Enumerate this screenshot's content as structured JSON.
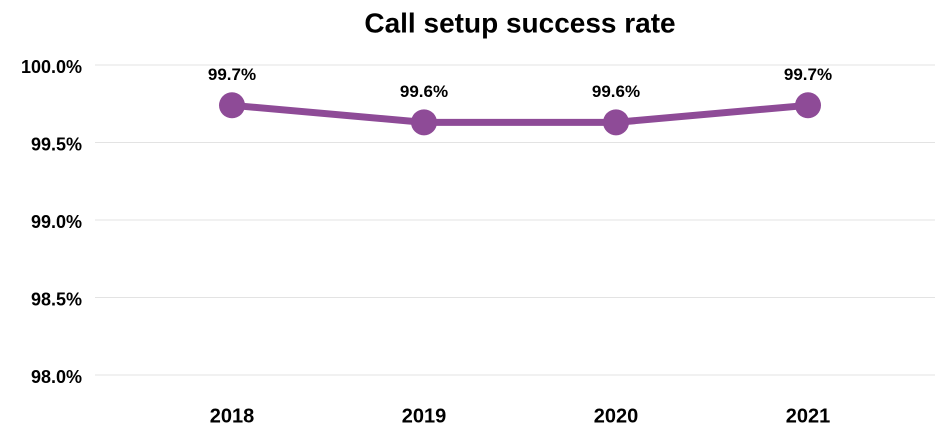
{
  "chart_data": {
    "type": "line",
    "title": "Call setup success rate",
    "categories": [
      "2018",
      "2019",
      "2020",
      "2021"
    ],
    "series": [
      {
        "name": "Call setup success rate",
        "color": "#8e4b97",
        "values": [
          99.74,
          99.63,
          99.63,
          99.74
        ],
        "value_labels": [
          "99.7%",
          "99.6%",
          "99.6%",
          "99.7%"
        ]
      }
    ],
    "ylim": [
      98,
      100
    ],
    "yticks": [
      {
        "value": 98,
        "label": "98.0%"
      },
      {
        "value": 98.5,
        "label": "98.5%"
      },
      {
        "value": 99,
        "label": "99.0%"
      },
      {
        "value": 99.5,
        "label": "99.5%"
      },
      {
        "value": 100,
        "label": "100.0%"
      }
    ],
    "grid": true
  }
}
